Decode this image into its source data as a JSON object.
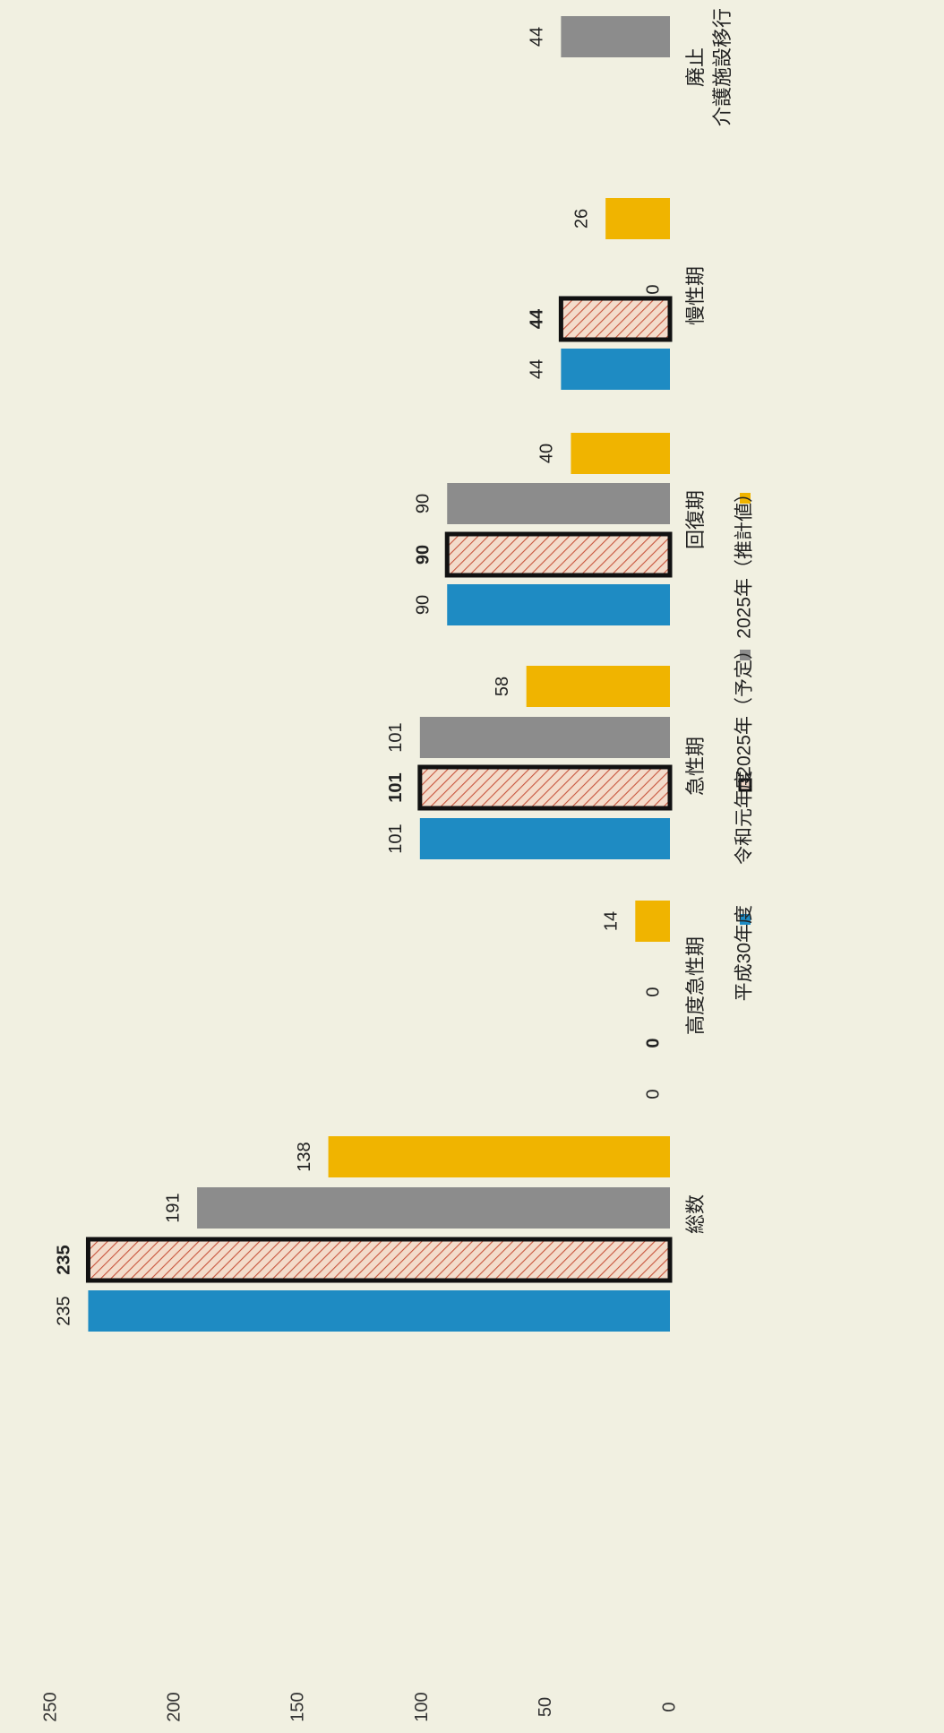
{
  "chart_data": {
    "type": "bar",
    "orientation": "rotated-90",
    "categories": [
      "総数",
      "高度急性期",
      "急性期",
      "回復期",
      "慢性期",
      "廃止\n介護施設移行"
    ],
    "series": [
      {
        "name": "平成30年度",
        "color": "#1e8bc3",
        "values": [
          235,
          0,
          101,
          90,
          44,
          null
        ]
      },
      {
        "name": "令和元年度",
        "color": "#f0d6c4",
        "hatch": "#c8553d",
        "values": [
          235,
          0,
          101,
          90,
          44,
          null
        ]
      },
      {
        "name": "2025年（予定）",
        "color": "#8c8c8c",
        "values": [
          191,
          0,
          101,
          90,
          0,
          44
        ]
      },
      {
        "name": "2025年（推計値）",
        "color": "#f0b400",
        "values": [
          138,
          14,
          58,
          40,
          26,
          null
        ]
      }
    ],
    "value_axis": {
      "min": 0,
      "max": 250,
      "ticks": [
        0,
        50,
        100,
        150,
        200,
        250
      ]
    },
    "grid": false,
    "legend_position": "bottom (rotated)"
  }
}
